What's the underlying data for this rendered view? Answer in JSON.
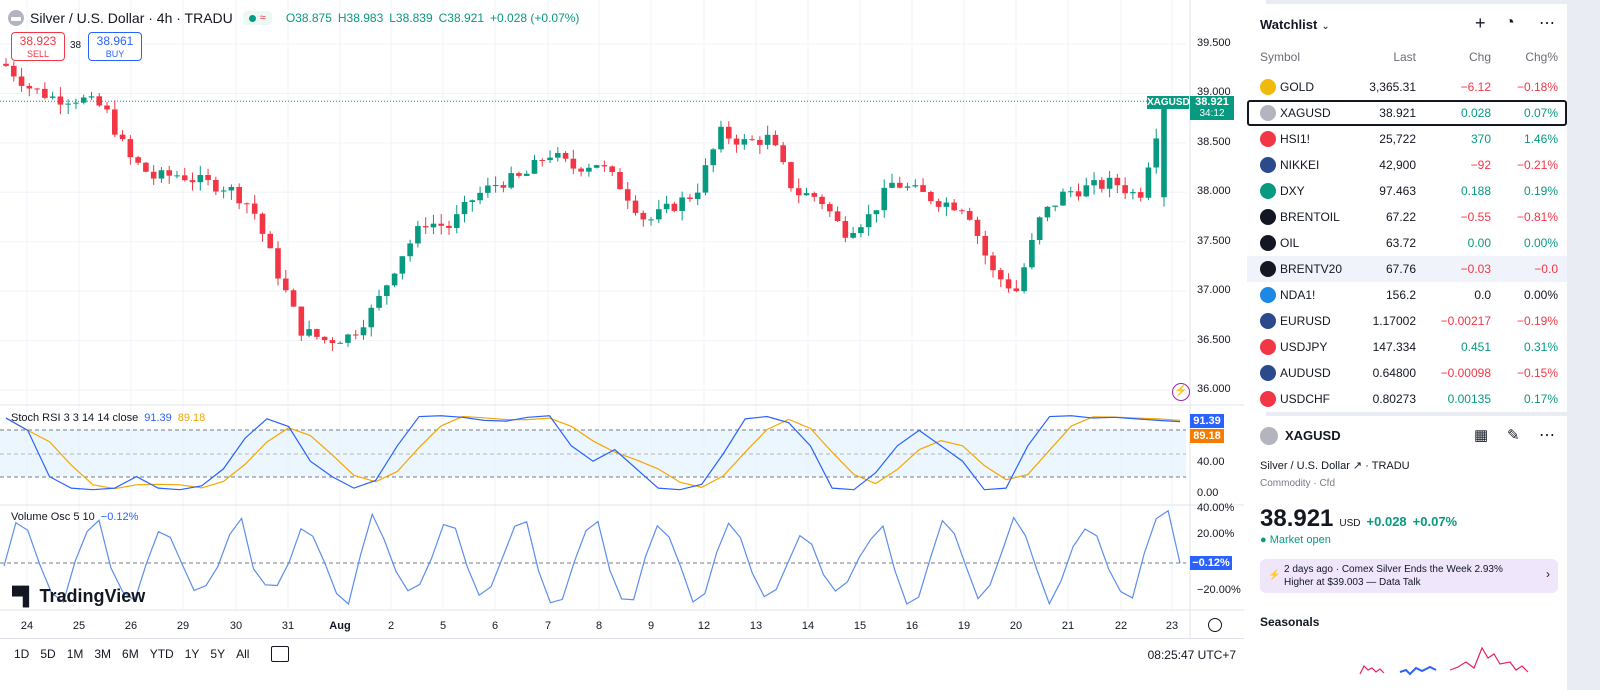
{
  "header": {
    "title": "Silver / U.S. Dollar · 4h · TRADU",
    "open": "O38.875",
    "high": "H38.983",
    "low": "L38.839",
    "close": "C38.921",
    "change": "+0.028 (+0.07%)"
  },
  "trade": {
    "sell_price": "38.923",
    "sell_label": "SELL",
    "buy_price": "38.961",
    "buy_label": "BUY",
    "qty": "38"
  },
  "price_axis": [
    "39.500",
    "39.000",
    "38.500",
    "38.000",
    "37.500",
    "37.000",
    "36.500",
    "36.000"
  ],
  "price_tag": {
    "symbol": "XAGUSD",
    "price": "38.921",
    "countdown": "34:12"
  },
  "stoch_rsi": {
    "label": "Stoch RSI",
    "params": "3 3 14 14 close",
    "k": "91.39",
    "d": "89.18",
    "axis": [
      "40.00",
      "0.00"
    ]
  },
  "volume_osc": {
    "label": "Volume Osc",
    "params": "5 10",
    "value": "−0.12%",
    "axis": [
      "40.00%",
      "20.00%",
      "−20.00%"
    ],
    "tag": "−0.12%"
  },
  "brand": "TradingView",
  "x_axis": [
    "24",
    "25",
    "26",
    "29",
    "30",
    "31",
    "Aug",
    "2",
    "5",
    "6",
    "7",
    "8",
    "9",
    "12",
    "13",
    "14",
    "15",
    "16",
    "19",
    "20",
    "21",
    "22",
    "23"
  ],
  "ranges": [
    "1D",
    "5D",
    "1M",
    "3M",
    "6M",
    "YTD",
    "1Y",
    "5Y",
    "All"
  ],
  "clock": "08:25:47 UTC+7",
  "watchlist": {
    "title": "Watchlist",
    "columns": {
      "symbol": "Symbol",
      "last": "Last",
      "chg": "Chg",
      "chgp": "Chg%"
    },
    "rows": [
      {
        "symbol": "GOLD",
        "last": "3,365.31",
        "chg": "−6.12",
        "chgp": "−0.18%",
        "dir": "neg",
        "icon_color": "#f0b90b"
      },
      {
        "symbol": "XAGUSD",
        "last": "38.921",
        "chg": "0.028",
        "chgp": "0.07%",
        "dir": "pos",
        "icon_color": "#b2b5be"
      },
      {
        "symbol": "HSI1!",
        "last": "25,722",
        "chg": "370",
        "chgp": "1.46%",
        "dir": "pos",
        "icon_color": "#f23645"
      },
      {
        "symbol": "NIKKEI",
        "last": "42,900",
        "chg": "−92",
        "chgp": "−0.21%",
        "dir": "neg",
        "icon_color": "#2a4a8c"
      },
      {
        "symbol": "DXY",
        "last": "97.463",
        "chg": "0.188",
        "chgp": "0.19%",
        "dir": "pos",
        "icon_color": "#089981"
      },
      {
        "symbol": "BRENTOIL",
        "last": "67.22",
        "chg": "−0.55",
        "chgp": "−0.81%",
        "dir": "neg",
        "icon_color": "#131722"
      },
      {
        "symbol": "OIL",
        "last": "63.72",
        "chg": "0.00",
        "chgp": "0.00%",
        "dir": "pos",
        "icon_color": "#131722"
      },
      {
        "symbol": "BRENTV20",
        "last": "67.76",
        "chg": "−0.03",
        "chgp": "−0.0",
        "dir": "neg",
        "icon_color": "#131722"
      },
      {
        "symbol": "NDA1!",
        "last": "156.2",
        "chg": "0.0",
        "chgp": "0.00%",
        "dir": "zero",
        "icon_color": "#1e88e5"
      },
      {
        "symbol": "EURUSD",
        "last": "1.17002",
        "chg": "−0.00217",
        "chgp": "−0.19%",
        "dir": "neg",
        "icon_color": "#2a4a8c"
      },
      {
        "symbol": "USDJPY",
        "last": "147.334",
        "chg": "0.451",
        "chgp": "0.31%",
        "dir": "pos",
        "icon_color": "#f23645"
      },
      {
        "symbol": "AUDUSD",
        "last": "0.64800",
        "chg": "−0.00098",
        "chgp": "−0.15%",
        "dir": "neg",
        "icon_color": "#2a4a8c"
      },
      {
        "symbol": "USDCHF",
        "last": "0.80273",
        "chg": "0.00135",
        "chgp": "0.17%",
        "dir": "pos",
        "icon_color": "#f23645"
      }
    ]
  },
  "details": {
    "symbol": "XAGUSD",
    "name": "Silver / U.S. Dollar",
    "exchange": "TRADU",
    "type": "Commodity · Cfd",
    "price": "38.921",
    "currency": "USD",
    "change": "+0.028",
    "change_pct": "+0.07%",
    "status": "Market open",
    "news_time": "2 days ago",
    "news_text": "Comex Silver Ends the Week 2.93% Higher at $39.003 — Data Talk",
    "seasonals": "Seasonals"
  },
  "colors": {
    "up": "#089981",
    "down": "#f23645",
    "k_line": "#2962ff",
    "d_line": "#f7a600"
  },
  "chart_data": {
    "type": "candlestick",
    "symbol": "XAGUSD",
    "timeframe": "4h",
    "x": [
      "24",
      "25",
      "26",
      "29",
      "30",
      "31",
      "Aug",
      "2",
      "5",
      "6",
      "7",
      "8",
      "9",
      "12",
      "13",
      "14",
      "15",
      "16",
      "19",
      "20",
      "21",
      "22",
      "23"
    ],
    "close_path": [
      39.28,
      39.05,
      38.95,
      38.95,
      38.85,
      38.35,
      38.15,
      38.18,
      38.1,
      38.05,
      37.85,
      37.2,
      36.6,
      36.5,
      36.55,
      36.85,
      37.35,
      37.7,
      37.65,
      37.95,
      38.1,
      38.15,
      38.4,
      38.25,
      38.3,
      38.05,
      37.7,
      37.85,
      38.0,
      38.6,
      38.5,
      38.55,
      38.0,
      37.95,
      37.6,
      37.75,
      38.1,
      38.0,
      37.9,
      37.85,
      37.2,
      37.0,
      37.75,
      38.0,
      38.05,
      38.1,
      37.95,
      38.92
    ],
    "ylim": [
      35.9,
      39.6
    ]
  }
}
